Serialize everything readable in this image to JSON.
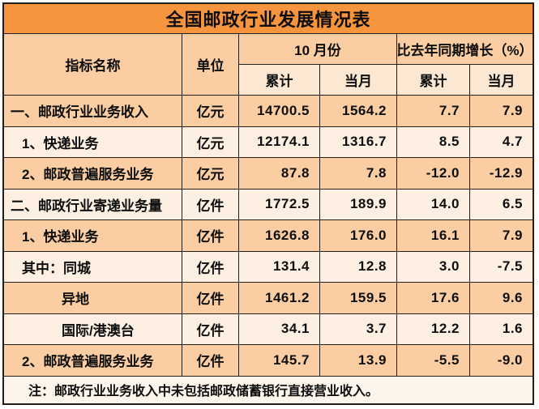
{
  "title": "全国邮政行业发展情况表",
  "colors": {
    "title_bg": "#f7943e",
    "header_bg": "#facda2",
    "subheader_bg": "#fce8d2",
    "row_peach": "#facda2",
    "row_light": "#fdf0e2",
    "note_bg": "#fdf4eb",
    "border": "#221d18",
    "text": "#0d0d0d"
  },
  "table": {
    "headers": {
      "indicator": "指标名称",
      "unit": "单位",
      "october": "10 月份",
      "growth": "比去年同期增长（%）",
      "oct_cumulative": "累计",
      "oct_month": "当月",
      "growth_cumulative": "累计",
      "growth_month": "当月"
    },
    "rows": [
      {
        "name": "一、邮政行业业务收入",
        "unit": "亿元",
        "oct_cum": "14700.5",
        "oct_mon": "1564.2",
        "gr_cum": "7.7",
        "gr_mon": "7.9"
      },
      {
        "name": "1、快递业务",
        "unit": "亿元",
        "oct_cum": "12174.1",
        "oct_mon": "1316.7",
        "gr_cum": "8.5",
        "gr_mon": "4.7"
      },
      {
        "name": "2、邮政普遍服务业务",
        "unit": "亿元",
        "oct_cum": "87.8",
        "oct_mon": "7.8",
        "gr_cum": "-12.0",
        "gr_mon": "-12.9"
      },
      {
        "name": "二、邮政行业寄递业务量",
        "unit": "亿件",
        "oct_cum": "1772.5",
        "oct_mon": "189.9",
        "gr_cum": "14.0",
        "gr_mon": "6.5"
      },
      {
        "name": "1、快递业务",
        "unit": "亿件",
        "oct_cum": "1626.8",
        "oct_mon": "176.0",
        "gr_cum": "16.1",
        "gr_mon": "7.9"
      },
      {
        "name": "其中：同城",
        "unit": "亿件",
        "oct_cum": "131.4",
        "oct_mon": "12.8",
        "gr_cum": "3.0",
        "gr_mon": "-7.5"
      },
      {
        "name": "异地",
        "unit": "亿件",
        "oct_cum": "1461.2",
        "oct_mon": "159.5",
        "gr_cum": "17.6",
        "gr_mon": "9.6"
      },
      {
        "name": "国际/港澳台",
        "unit": "亿件",
        "oct_cum": "34.1",
        "oct_mon": "3.7",
        "gr_cum": "12.2",
        "gr_mon": "1.6"
      },
      {
        "name": "2、邮政普遍服务业务",
        "unit": "亿件",
        "oct_cum": "145.7",
        "oct_mon": "13.9",
        "gr_cum": "-5.5",
        "gr_mon": "-9.0"
      }
    ],
    "note": "注：邮政行业业务收入中未包括邮政储蓄银行直接营业收入。"
  },
  "chart_data": {
    "type": "table",
    "title": "全国邮政行业发展情况表",
    "column_groups": [
      {
        "label": "10 月份",
        "columns": [
          "累计",
          "当月"
        ]
      },
      {
        "label": "比去年同期增长（%）",
        "columns": [
          "累计",
          "当月"
        ]
      }
    ],
    "columns": [
      "指标名称",
      "单位",
      "10月份-累计",
      "10月份-当月",
      "比去年同期增长(%)-累计",
      "比去年同期增长(%)-当月"
    ],
    "rows": [
      [
        "一、邮政行业业务收入",
        "亿元",
        14700.5,
        1564.2,
        7.7,
        7.9
      ],
      [
        "1、快递业务",
        "亿元",
        12174.1,
        1316.7,
        8.5,
        4.7
      ],
      [
        "2、邮政普遍服务业务",
        "亿元",
        87.8,
        7.8,
        -12.0,
        -12.9
      ],
      [
        "二、邮政行业寄递业务量",
        "亿件",
        1772.5,
        189.9,
        14.0,
        6.5
      ],
      [
        "1、快递业务",
        "亿件",
        1626.8,
        176.0,
        16.1,
        7.9
      ],
      [
        "其中：同城",
        "亿件",
        131.4,
        12.8,
        3.0,
        -7.5
      ],
      [
        "异地",
        "亿件",
        1461.2,
        159.5,
        17.6,
        9.6
      ],
      [
        "国际/港澳台",
        "亿件",
        34.1,
        3.7,
        12.2,
        1.6
      ],
      [
        "2、邮政普遍服务业务",
        "亿件",
        145.7,
        13.9,
        -5.5,
        -9.0
      ]
    ],
    "note": "注：邮政行业业务收入中未包括邮政储蓄银行直接营业收入。"
  }
}
